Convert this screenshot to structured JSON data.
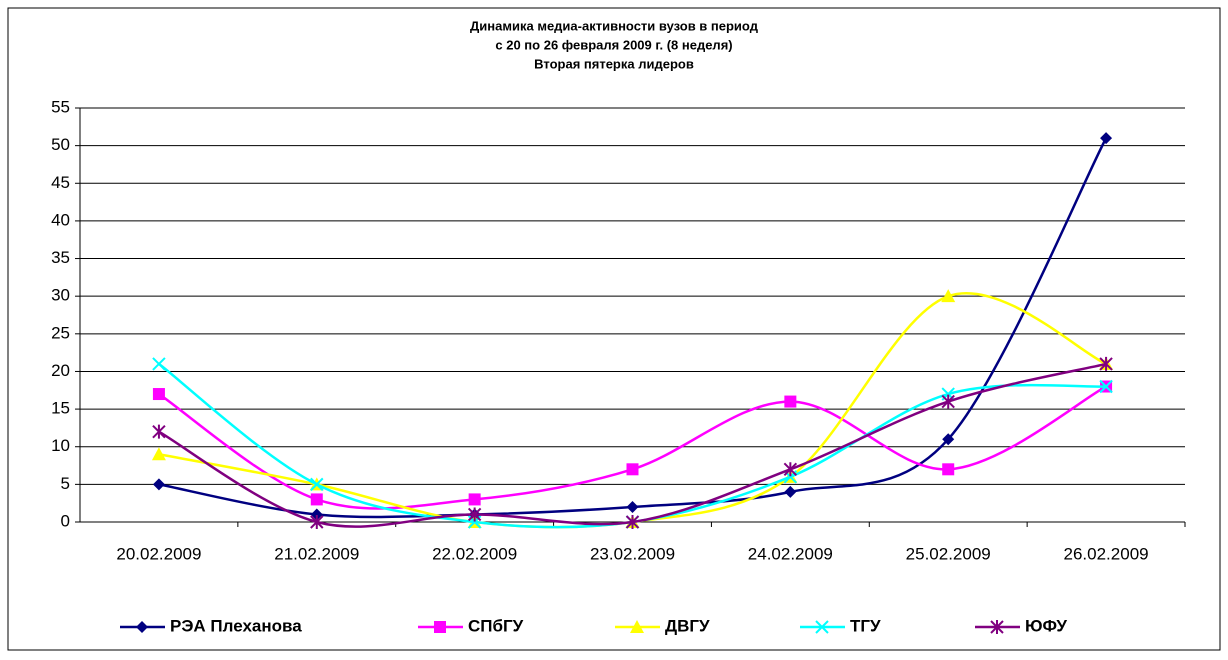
{
  "chart_data": {
    "type": "line",
    "title": [
      "Динамика медиа-активности вузов в период",
      "с 20 по 26 февраля 2009 г. (8 неделя)",
      "Вторая пятерка лидеров"
    ],
    "categories": [
      "20.02.2009",
      "21.02.2009",
      "22.02.2009",
      "23.02.2009",
      "24.02.2009",
      "25.02.2009",
      "26.02.2009"
    ],
    "series": [
      {
        "name": "РЭА Плеханова",
        "color": "#000080",
        "marker": "diamond",
        "values": [
          5,
          1,
          1,
          2,
          4,
          11,
          51
        ]
      },
      {
        "name": "СПбГУ",
        "color": "#ff00ff",
        "marker": "square",
        "values": [
          17,
          3,
          3,
          7,
          16,
          7,
          18
        ]
      },
      {
        "name": "ДВГУ",
        "color": "#ffff00",
        "marker": "triangle",
        "values": [
          9,
          5,
          0,
          0,
          6,
          30,
          21
        ]
      },
      {
        "name": "ТГУ",
        "color": "#00ffff",
        "marker": "cross",
        "values": [
          21,
          5,
          0,
          0,
          6,
          17,
          18
        ]
      },
      {
        "name": "ЮФУ",
        "color": "#800080",
        "marker": "star",
        "values": [
          12,
          0,
          1,
          0,
          7,
          16,
          21
        ]
      }
    ],
    "ylim": [
      0,
      55
    ],
    "yticks": [
      0,
      5,
      10,
      15,
      20,
      25,
      30,
      35,
      40,
      45,
      50,
      55
    ],
    "grid": true,
    "smooth": true,
    "legend": "bottom"
  }
}
